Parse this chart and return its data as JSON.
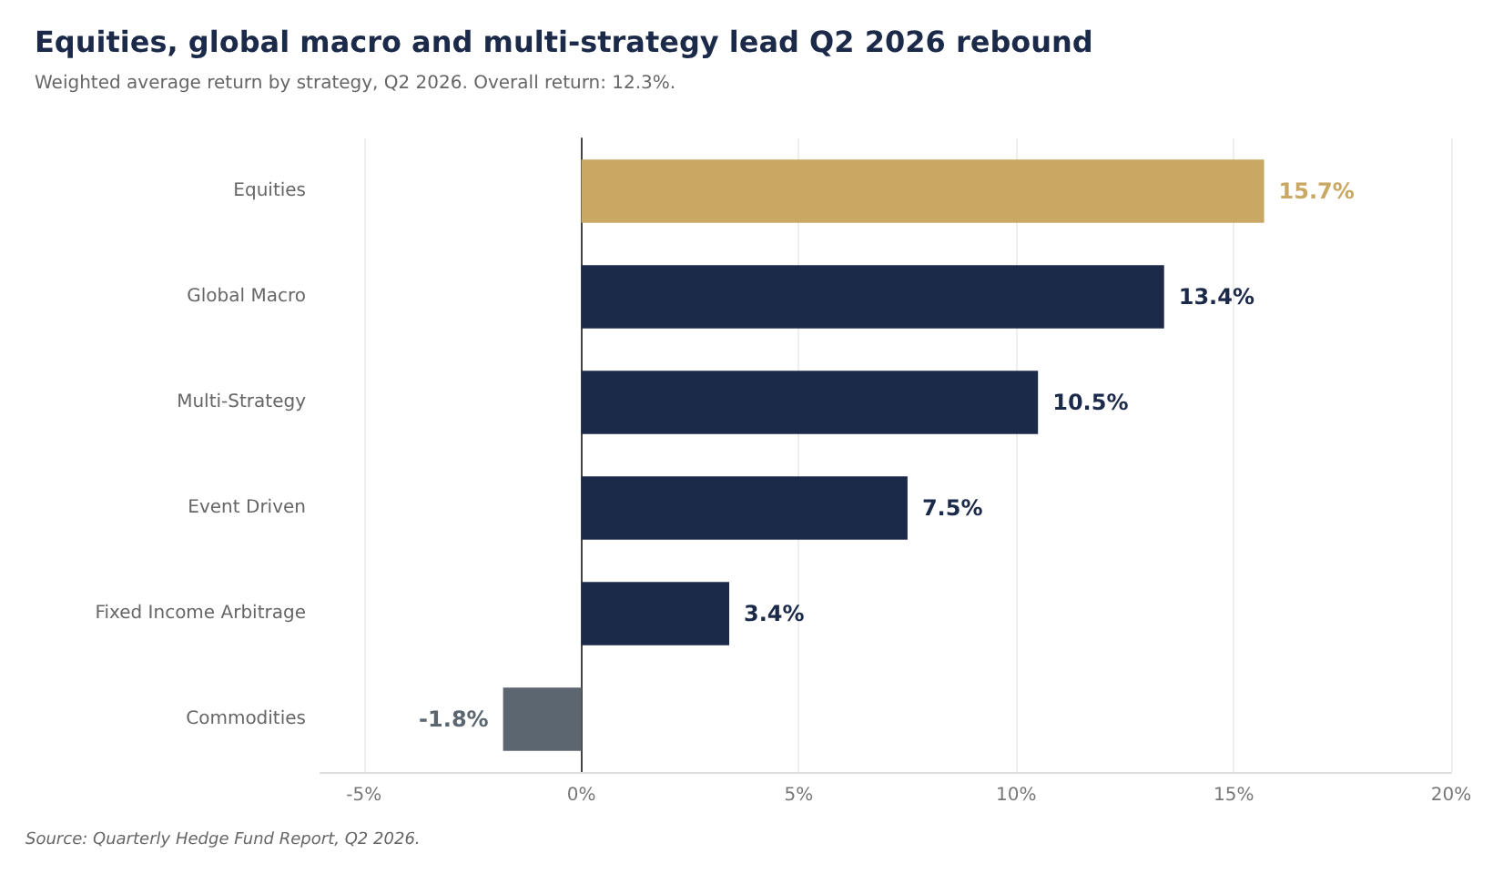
{
  "chart_data": {
    "type": "bar",
    "orientation": "horizontal",
    "title": "Equities, global macro and multi-strategy lead Q2 2026 rebound",
    "subtitle": "Weighted average return by strategy, Q2 2026. Overall return: 12.3%.",
    "categories": [
      "Equities",
      "Global Macro",
      "Multi-Strategy",
      "Event Driven",
      "Fixed Income Arbitrage",
      "Commodities"
    ],
    "values": [
      15.7,
      13.4,
      10.5,
      7.5,
      3.4,
      -1.8
    ],
    "colors": [
      "#c8a862",
      "#1c2a4a",
      "#1c2a4a",
      "#1c2a4a",
      "#1c2a4a",
      "#5c6670"
    ],
    "value_labels": [
      "15.7%",
      "13.4%",
      "10.5%",
      "7.5%",
      "3.4%",
      "-1.8%"
    ],
    "xlim": [
      -6,
      20
    ],
    "xticks": [
      {
        "value": -5,
        "label": "-5%"
      },
      {
        "value": 0,
        "label": "0%"
      },
      {
        "value": 5,
        "label": "5%"
      },
      {
        "value": 10,
        "label": "10%"
      },
      {
        "value": 15,
        "label": "15%"
      },
      {
        "value": 20,
        "label": "20%"
      }
    ],
    "grid": "x",
    "annotations": [
      "Source: Quarterly Hedge Fund Report, Q2 2026."
    ]
  }
}
